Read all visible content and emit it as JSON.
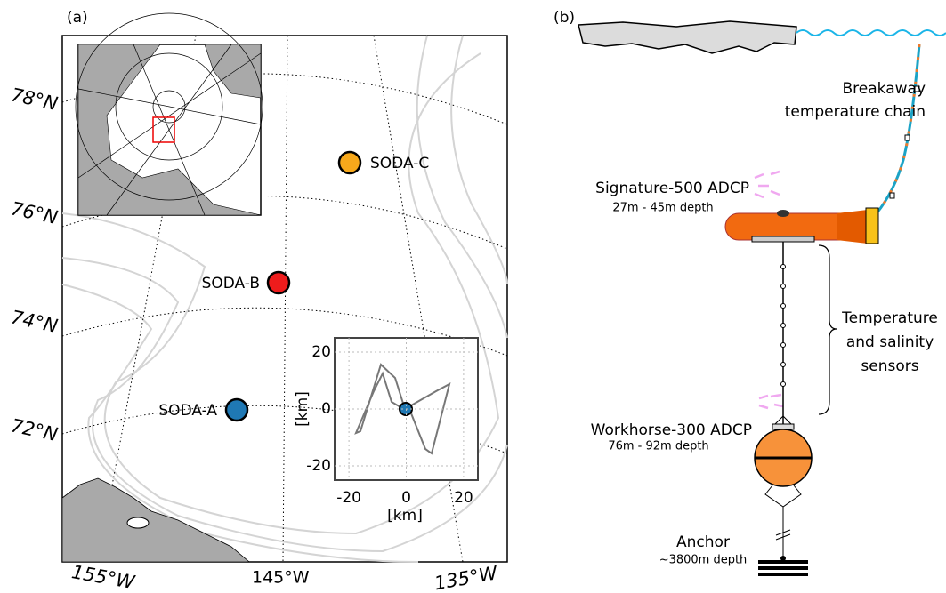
{
  "panel_a": {
    "label": "(a)",
    "latitudes": [
      "78°N",
      "76°N",
      "74°N",
      "72°N"
    ],
    "longitudes": [
      "155°W",
      "145°W",
      "135°W"
    ],
    "stations": [
      "SODA-C",
      "SODA-B",
      "SODA-A"
    ],
    "inset": {
      "xlabel": "[km]",
      "ylabel": "[km]",
      "xlim": [
        -25,
        25
      ],
      "ylim": [
        -25,
        25
      ],
      "xticks": [
        -20,
        0,
        20
      ],
      "yticks": [
        -20,
        0,
        20
      ]
    }
  },
  "panel_b": {
    "label": "(b)",
    "chain": [
      "Breakaway",
      "temperature chain"
    ],
    "signature": {
      "name": "Signature-500 ADCP",
      "depth": "27m - 45m depth"
    },
    "sensors": [
      "Temperature",
      "and salinity",
      "sensors"
    ],
    "workhorse": {
      "name": "Workhorse-300 ADCP",
      "depth": "76m - 92m depth"
    },
    "anchor": {
      "name": "Anchor",
      "depth": "~3800m depth"
    }
  }
}
